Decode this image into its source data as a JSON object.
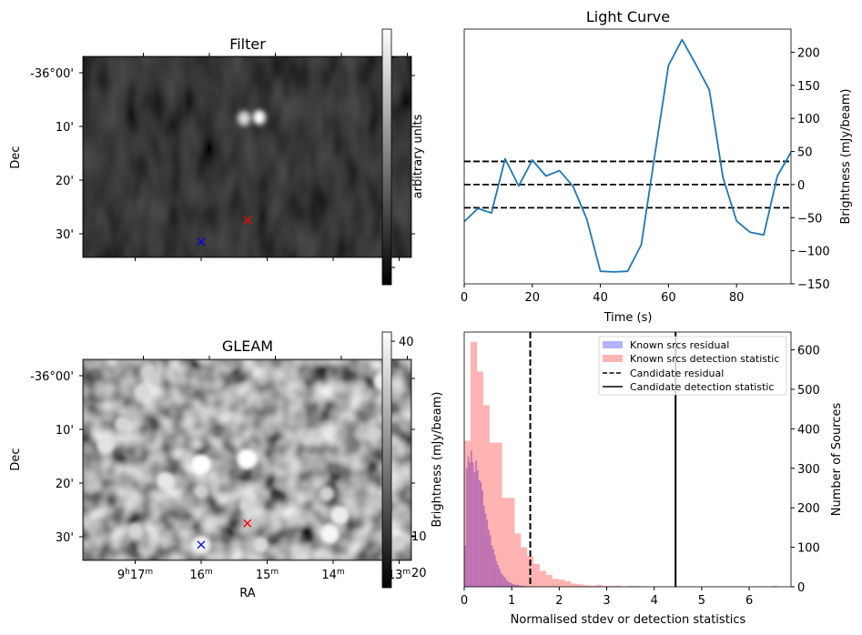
{
  "chart_data": [
    {
      "type": "heatmap",
      "panel": "filter",
      "title": "Filter",
      "ylabel": "Dec",
      "xlabel": "",
      "dec_tick_labels": [
        "-36°00'",
        "10'",
        "20'",
        "30'"
      ],
      "colorbar_label": "arbitrary units",
      "colormap": "gray",
      "markers": [
        {
          "name": "candidate",
          "symbol": "x",
          "color": "#ff0000",
          "ra_min": 15.3,
          "dec_arcmin": 27.5
        },
        {
          "name": "reference",
          "symbol": "x",
          "color": "#0000ff",
          "ra_min": 16.0,
          "dec_arcmin": 31.5
        }
      ],
      "bright_features": [
        {
          "ra_min": 15.35,
          "dec_arcmin": 8.5,
          "intensity": 0.85
        },
        {
          "ra_min": 15.12,
          "dec_arcmin": 8.3,
          "intensity": 1.0
        }
      ]
    },
    {
      "type": "line",
      "panel": "light-curve",
      "title": "Light Curve",
      "xlabel": "Time (s)",
      "ylabel": "Brightness (mJy/beam)",
      "xlim": [
        0,
        96
      ],
      "ylim": [
        -150,
        235
      ],
      "x_ticks": [
        0,
        20,
        40,
        60,
        80
      ],
      "y_ticks": [
        -150,
        -100,
        -50,
        0,
        50,
        100,
        150,
        200
      ],
      "y_tick_labels": [
        "−150",
        "−100",
        "−50",
        "0",
        "50",
        "100",
        "150",
        "200"
      ],
      "y_axis_side": "right",
      "series": [
        {
          "name": "light curve",
          "color": "#1f77b4",
          "x": [
            0,
            4,
            8,
            12,
            16,
            20,
            24,
            28,
            32,
            36,
            40,
            44,
            48,
            52,
            56,
            60,
            64,
            68,
            72,
            76,
            80,
            84,
            88,
            92,
            96
          ],
          "y": [
            -56,
            -36,
            -43,
            39,
            -2,
            37,
            13,
            21,
            -3,
            -52,
            -131,
            -132,
            -131,
            -91,
            45,
            180,
            219,
            182,
            143,
            11,
            -55,
            -72,
            -76,
            13,
            49
          ]
        }
      ],
      "hlines": [
        {
          "y": 35,
          "style": "dashed",
          "color": "#000000"
        },
        {
          "y": 0,
          "style": "dashed",
          "color": "#000000"
        },
        {
          "y": -35,
          "style": "dashed",
          "color": "#000000"
        }
      ]
    },
    {
      "type": "heatmap",
      "panel": "gleam",
      "title": "GLEAM",
      "xlabel": "RA",
      "ylabel": "Dec",
      "ra_tick_labels": [
        {
          "main": "9",
          "sup1": "h",
          "mid": "17",
          "sup2": "m"
        },
        {
          "main": "",
          "sup1": "",
          "mid": "16",
          "sup2": "m"
        },
        {
          "main": "",
          "sup1": "",
          "mid": "15",
          "sup2": "m"
        },
        {
          "main": "",
          "sup1": "",
          "mid": "14",
          "sup2": "m"
        },
        {
          "main": "",
          "sup1": "",
          "mid": "13",
          "sup2": "m"
        }
      ],
      "dec_tick_labels": [
        "-36°00'",
        "10'",
        "20'",
        "30'"
      ],
      "colorbar_label": "Brightness (mJy/beam)",
      "colorbar_ticks": [
        "40",
        "30",
        "20",
        "10",
        "0",
        "10",
        "20"
      ],
      "colorbar_visible_ticks": [
        "40",
        "10",
        "20"
      ],
      "colormap": "gray",
      "markers": [
        {
          "name": "candidate",
          "symbol": "x",
          "color": "#ff0000",
          "ra_min": 15.3,
          "dec_arcmin": 27.5
        },
        {
          "name": "reference",
          "symbol": "x",
          "color": "#0000ff",
          "ra_min": 16.0,
          "dec_arcmin": 31.5
        }
      ],
      "bright_sources": [
        {
          "ra_min": 16.0,
          "dec_arcmin": 16.5,
          "r": 1.0
        },
        {
          "ra_min": 15.3,
          "dec_arcmin": 15.5,
          "r": 1.0
        },
        {
          "ra_min": 16.55,
          "dec_arcmin": 19.5,
          "r": 0.75
        },
        {
          "ra_min": 17.45,
          "dec_arcmin": 13.0,
          "r": 0.7
        },
        {
          "ra_min": 13.9,
          "dec_arcmin": 26.0,
          "r": 0.8
        },
        {
          "ra_min": 14.05,
          "dec_arcmin": 29.5,
          "r": 0.9
        },
        {
          "ra_min": 16.0,
          "dec_arcmin": 31.5,
          "r": 0.85
        },
        {
          "ra_min": 13.25,
          "dec_arcmin": 1.0,
          "r": 0.8
        },
        {
          "ra_min": 15.1,
          "dec_arcmin": 31.5,
          "r": 0.6
        },
        {
          "ra_min": 15.3,
          "dec_arcmin": 24.0,
          "r": 0.55
        },
        {
          "ra_min": 16.9,
          "dec_arcmin": 3.0,
          "r": 0.6
        },
        {
          "ra_min": 17.0,
          "dec_arcmin": 29.0,
          "r": 0.55
        },
        {
          "ra_min": 14.1,
          "dec_arcmin": 22.0,
          "r": 0.5
        },
        {
          "ra_min": 16.0,
          "dec_arcmin": 21.5,
          "r": 0.5
        },
        {
          "ra_min": 13.4,
          "dec_arcmin": 11.0,
          "r": 0.5
        },
        {
          "ra_min": 13.0,
          "dec_arcmin": 31.0,
          "r": 0.5
        },
        {
          "ra_min": 17.2,
          "dec_arcmin": 9.0,
          "r": 0.55
        },
        {
          "ra_min": 16.8,
          "dec_arcmin": -1.0,
          "r": 0.5
        }
      ]
    },
    {
      "type": "bar",
      "subtype": "histogram",
      "panel": "histogram",
      "title": "",
      "xlabel": "Normalised stdev or detection statistics",
      "ylabel": "Number of Sources",
      "y_axis_side": "right",
      "xlim": [
        0,
        6.88
      ],
      "ylim": [
        0,
        645
      ],
      "x_ticks": [
        0,
        1,
        2,
        3,
        4,
        5,
        6
      ],
      "y_ticks": [
        0,
        100,
        200,
        300,
        400,
        500,
        600
      ],
      "legend_position": "upper-right",
      "series": [
        {
          "name": "Known srcs residual",
          "color": "#b3b3ff",
          "bin_start": 0,
          "bin_width": 0.033,
          "values": [
            105,
            300,
            330,
            315,
            345,
            315,
            290,
            320,
            295,
            270,
            265,
            245,
            205,
            185,
            170,
            145,
            130,
            105,
            95,
            80,
            65,
            55,
            45,
            35,
            30,
            25,
            20,
            15,
            12,
            10,
            8,
            7,
            5,
            5,
            4,
            3,
            3,
            2,
            2,
            1,
            1,
            1,
            1,
            1
          ]
        },
        {
          "name": "Known srcs detection statistic",
          "color": "#ffb3b3",
          "bin_start": 0,
          "bin_width": 0.132,
          "values": [
            370,
            620,
            545,
            460,
            365,
            365,
            225,
            225,
            135,
            100,
            78,
            58,
            40,
            30,
            20,
            18,
            14,
            8,
            6,
            4,
            3,
            5,
            2,
            2,
            3,
            0,
            2,
            2,
            1,
            0,
            0,
            0,
            0,
            0,
            0,
            0,
            0,
            0,
            0,
            0,
            0,
            0,
            0,
            0,
            0,
            0,
            0,
            0,
            0,
            2
          ]
        }
      ],
      "vlines": [
        {
          "name": "Candidate residual",
          "x": 1.39,
          "style": "dashed",
          "color": "#000000"
        },
        {
          "name": "Candidate detection statistic",
          "x": 4.45,
          "style": "solid",
          "color": "#000000"
        }
      ],
      "legend": [
        {
          "label": "Known srcs residual",
          "kind": "patch",
          "color": "#b3b3ff"
        },
        {
          "label": "Known srcs detection statistic",
          "kind": "patch",
          "color": "#ffb3b3"
        },
        {
          "label": "Candidate residual",
          "kind": "dashed-line",
          "color": "#000000"
        },
        {
          "label": "Candidate detection statistic",
          "kind": "solid-line",
          "color": "#000000"
        }
      ]
    }
  ]
}
